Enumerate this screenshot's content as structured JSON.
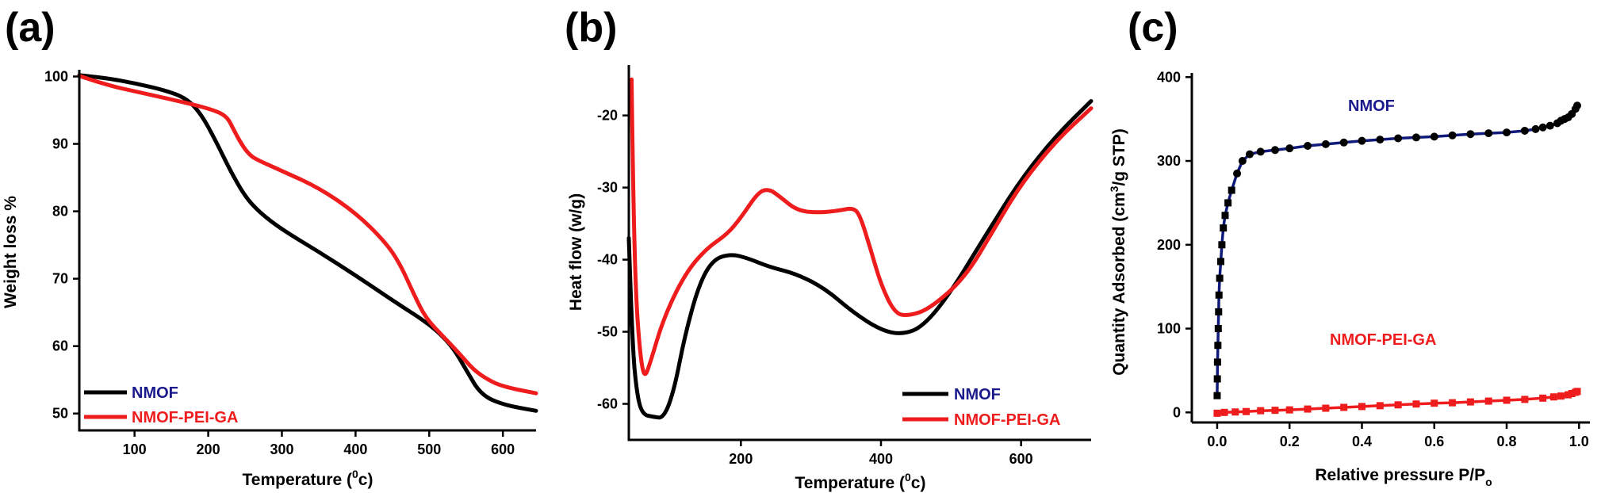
{
  "chart_data": [
    {
      "type": "line",
      "panel": "(a)",
      "title": "",
      "xlabel": "Temperature (0c)",
      "xlabel_main": "Temperature (",
      "xlabel_sup": "0",
      "xlabel_tail": "c)",
      "ylabel": "Weight loss %",
      "xlim": [
        25,
        645
      ],
      "ylim": [
        47.5,
        101
      ],
      "xticks": [
        100,
        200,
        300,
        400,
        500,
        600
      ],
      "yticks": [
        50,
        60,
        70,
        80,
        90,
        100
      ],
      "legend_position": "bottom-left",
      "series": [
        {
          "name": "NMOF",
          "color": "#000000",
          "label_color": "#1a1a8c",
          "x": [
            25,
            60,
            100,
            140,
            170,
            190,
            210,
            230,
            250,
            270,
            300,
            350,
            400,
            450,
            500,
            530,
            550,
            570,
            600,
            645
          ],
          "y": [
            100.2,
            99.8,
            99.0,
            98.0,
            96.8,
            94.5,
            90.5,
            86.0,
            82.2,
            79.8,
            77.3,
            74.0,
            70.5,
            66.8,
            63.3,
            60.2,
            56.5,
            52.8,
            51.3,
            50.4
          ]
        },
        {
          "name": "NMOF-PEI-GA",
          "color": "#ee1c1c",
          "label_color": "#ee1c1c",
          "x": [
            25,
            60,
            100,
            150,
            200,
            225,
            235,
            245,
            255,
            265,
            300,
            350,
            400,
            440,
            460,
            480,
            495,
            520,
            540,
            560,
            580,
            600,
            645
          ],
          "y": [
            100.1,
            98.8,
            97.8,
            96.6,
            95.3,
            94.2,
            92.0,
            90.0,
            88.5,
            87.7,
            86.0,
            83.5,
            79.8,
            75.5,
            72.3,
            67.5,
            64.2,
            61.3,
            59.0,
            56.5,
            55.0,
            54.0,
            53.0
          ]
        }
      ]
    },
    {
      "type": "line",
      "panel": "(b)",
      "title": "",
      "xlabel": "Temperature (0c)",
      "xlabel_main": "Temperature (",
      "xlabel_sup": "0",
      "xlabel_tail": "c)",
      "ylabel": "Heat flow (w/g)",
      "xlim": [
        40,
        700
      ],
      "ylim": [
        -65,
        -13
      ],
      "xticks": [
        200,
        400,
        600
      ],
      "yticks": [
        -60,
        -50,
        -40,
        -30,
        -20
      ],
      "legend_position": "bottom-right",
      "series": [
        {
          "name": "NMOF",
          "color": "#000000",
          "label_color": "#1a1a8c",
          "x": [
            40,
            45,
            52,
            60,
            75,
            90,
            105,
            120,
            140,
            160,
            185,
            210,
            240,
            280,
            320,
            360,
            400,
            430,
            460,
            500,
            550,
            600,
            650,
            700
          ],
          "y": [
            -37,
            -52,
            -59,
            -61.5,
            -61.8,
            -62.0,
            -58.0,
            -50.5,
            -43.5,
            -40.0,
            -39.2,
            -39.8,
            -41.0,
            -42.0,
            -44.0,
            -47.3,
            -49.8,
            -50.4,
            -49.3,
            -44.5,
            -36.5,
            -28.8,
            -22.8,
            -18.0
          ]
        },
        {
          "name": "NMOF-PEI-GA",
          "color": "#ee1c1c",
          "label_color": "#ee1c1c",
          "x": [
            44,
            46,
            50,
            56,
            62,
            70,
            90,
            120,
            150,
            180,
            200,
            225,
            240,
            255,
            280,
            310,
            340,
            360,
            370,
            385,
            400,
            420,
            440,
            470,
            520,
            560,
            600,
            650,
            700
          ],
          "y": [
            -15,
            -30,
            -45,
            -53,
            -56.5,
            -54.5,
            -48.0,
            -42.0,
            -38.5,
            -36.5,
            -34.2,
            -30.6,
            -30.2,
            -31.2,
            -33.2,
            -33.5,
            -33.2,
            -32.8,
            -33.8,
            -38.5,
            -43.5,
            -47.5,
            -47.8,
            -46.8,
            -42.5,
            -36.0,
            -29.5,
            -23.5,
            -19.0
          ]
        }
      ]
    },
    {
      "type": "line",
      "panel": "(c)",
      "title": "",
      "xlabel": "Relative pressure P/Po",
      "xlabel_main": "Relative pressure P/P",
      "xlabel_sub": "o",
      "ylabel": "Quantity Adsorbed (cm3/g STP)",
      "ylabel_main": "Quantity Adsorbed (cm",
      "ylabel_sup": "3",
      "ylabel_tail": "/g STP)",
      "xlim": [
        -0.07,
        1.03
      ],
      "ylim": [
        -12,
        405
      ],
      "xticks": [
        "0.0",
        "0.2",
        "0.4",
        "0.6",
        "0.8",
        "1.0"
      ],
      "yticks": [
        0,
        100,
        200,
        300,
        400
      ],
      "series": [
        {
          "name": "NMOF",
          "color": "#101a7a",
          "marker_color": "#000000",
          "label_color": "#1a1a8c",
          "x": [
            0.0,
            0.0005,
            0.001,
            0.002,
            0.003,
            0.004,
            0.005,
            0.007,
            0.01,
            0.013,
            0.017,
            0.022,
            0.03,
            0.04,
            0.055,
            0.07,
            0.09,
            0.12,
            0.16,
            0.2,
            0.25,
            0.3,
            0.35,
            0.4,
            0.45,
            0.5,
            0.55,
            0.6,
            0.65,
            0.7,
            0.75,
            0.8,
            0.85,
            0.88,
            0.9,
            0.92,
            0.94,
            0.95,
            0.96,
            0.97,
            0.98,
            0.99,
            0.995
          ],
          "y": [
            20,
            40,
            60,
            80,
            100,
            120,
            140,
            160,
            180,
            200,
            220,
            235,
            250,
            265,
            285,
            300,
            308,
            311,
            313,
            315,
            318,
            320,
            322,
            324,
            325.5,
            327,
            328,
            329,
            330.5,
            332,
            333,
            334,
            336,
            338,
            340,
            342,
            345,
            348,
            350,
            352,
            356,
            362,
            366
          ]
        },
        {
          "name": "NMOF-PEI-GA",
          "color": "#ee1c1c",
          "marker_color": "#ee1c1c",
          "label_color": "#ee1c1c",
          "x": [
            0.0,
            0.02,
            0.05,
            0.08,
            0.12,
            0.16,
            0.2,
            0.25,
            0.3,
            0.35,
            0.4,
            0.45,
            0.5,
            0.55,
            0.6,
            0.65,
            0.7,
            0.75,
            0.8,
            0.85,
            0.9,
            0.93,
            0.95,
            0.97,
            0.98,
            0.99,
            0.995
          ],
          "y": [
            -1,
            0,
            0.5,
            1,
            2,
            2.5,
            3,
            4,
            5,
            6,
            7,
            8,
            9,
            10,
            11,
            11.5,
            12.5,
            13.5,
            14.5,
            15.5,
            17,
            18.5,
            19.5,
            21,
            22.5,
            24,
            25
          ]
        }
      ]
    }
  ]
}
